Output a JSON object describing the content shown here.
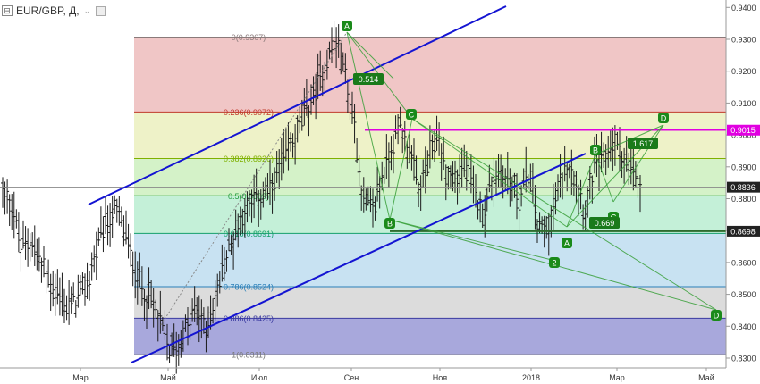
{
  "header": {
    "symbol": "EUR/GBP, Д,",
    "collapse_glyph": "⊟",
    "dropdown_glyph": "⌄"
  },
  "chart_data": {
    "type": "ohlc",
    "instrument": "EUR/GBP",
    "timeframe": "Д",
    "y_ticks": [
      0.94,
      0.93,
      0.92,
      0.91,
      0.9,
      0.89,
      0.88,
      0.87,
      0.86,
      0.85,
      0.84,
      0.83
    ],
    "ylim": [
      0.827,
      0.942
    ],
    "x_ticks": [
      "Мар",
      "Май",
      "Июл",
      "Сен",
      "Ноя",
      "2018",
      "Мар",
      "Май"
    ],
    "price_tags": [
      {
        "value": "0.9015",
        "color": "#e100e1"
      },
      {
        "value": "0.8836",
        "color": "#222222"
      },
      {
        "value": "0.8698",
        "color": "#222222"
      }
    ],
    "fibonacci": [
      {
        "level": "0",
        "price": 0.9307,
        "label": "0(0.9307)",
        "color": "#8a7a7a"
      },
      {
        "level": "0.236",
        "price": 0.9072,
        "label": "0.236(0.9072)",
        "color": "#c0392b"
      },
      {
        "level": "0.382",
        "price": 0.8926,
        "label": "0.382(0.8926)",
        "color": "#7fb000"
      },
      {
        "level": "0.5",
        "price": 0.8809,
        "label": "0.5(0.8809)",
        "color": "#1e9a3a"
      },
      {
        "level": "0.618",
        "price": 0.8691,
        "label": "0.618(0.8691)",
        "color": "#15a06a"
      },
      {
        "level": "0.786",
        "price": 0.8524,
        "label": "0.786(0.8524)",
        "color": "#2a7fb8"
      },
      {
        "level": "0.886",
        "price": 0.8425,
        "label": "0.886(0.8425)",
        "color": "#3a3aa0"
      },
      {
        "level": "1",
        "price": 0.8311,
        "label": "1(0.8311)",
        "color": "#777777"
      }
    ],
    "horizontal_lines": [
      {
        "price": 0.9015,
        "color": "#e100e1"
      },
      {
        "price": 0.8836,
        "color": "#888888"
      },
      {
        "price": 0.8698,
        "color": "#2e6b2e"
      }
    ],
    "pattern_labels": [
      "A",
      "C",
      "B",
      "D",
      "A",
      "B",
      "C",
      "D",
      "2",
      "D"
    ],
    "ratios": [
      "0.514",
      "0.669",
      "1.617"
    ],
    "series": [
      {
        "name": "price",
        "points": [
          [
            0.882,
            0.879,
            0.864,
            0.868,
            0.86,
            0.854,
            0.85,
            0.846,
            0.848,
            0.852,
            0.862,
            0.87,
            0.876,
            0.872,
            0.861,
            0.853,
            0.848,
            0.842,
            0.833,
            0.834,
            0.84,
            0.845,
            0.839,
            0.848,
            0.86,
            0.868,
            0.876,
            0.879,
            0.881,
            0.882,
            0.889,
            0.896,
            0.902,
            0.908,
            0.915,
            0.923,
            0.9307,
            0.92,
            0.905,
            0.88,
            0.876,
            0.886,
            0.895,
            0.904,
            0.895,
            0.882,
            0.89,
            0.9,
            0.888,
            0.886,
            0.89,
            0.882,
            0.876,
            0.886,
            0.888,
            0.885,
            0.88,
            0.889,
            0.87,
            0.872,
            0.88,
            0.892,
            0.888,
            0.876,
            0.89,
            0.892,
            0.898,
            0.895,
            0.888,
            0.8836
          ]
        ]
      }
    ]
  }
}
